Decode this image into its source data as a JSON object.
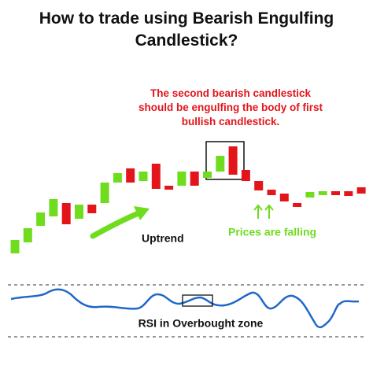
{
  "chart_data": {
    "type": "candlestick",
    "title": "How to trade using Bearish Engulfing Candlestick?",
    "annotation": "The second bearish candlestick should be engulfing the body of first bullish candlestick.",
    "trend_label": "Uptrend",
    "falling_label": "Prices are falling",
    "rsi_label": "RSI in Overbought zone",
    "up_color": "#6fdc1e",
    "down_color": "#e3151a",
    "ylim": [
      0,
      100
    ],
    "open": [
      4,
      11,
      21.5,
      27.5,
      36,
      26,
      35,
      36,
      49,
      58,
      50,
      61,
      47,
      47,
      56,
      52,
      56,
      72,
      57,
      50,
      44.5,
      42,
      36,
      39.5,
      41,
      43.5,
      43.5,
      46
    ],
    "close": [
      12.5,
      20,
      30,
      38.5,
      22.5,
      35,
      29.5,
      49,
      55,
      49,
      56,
      45,
      44.5,
      56,
      47,
      56,
      66,
      54,
      50,
      44,
      41,
      37,
      33.5,
      43,
      43.5,
      41,
      40.5,
      42
    ]
  }
}
